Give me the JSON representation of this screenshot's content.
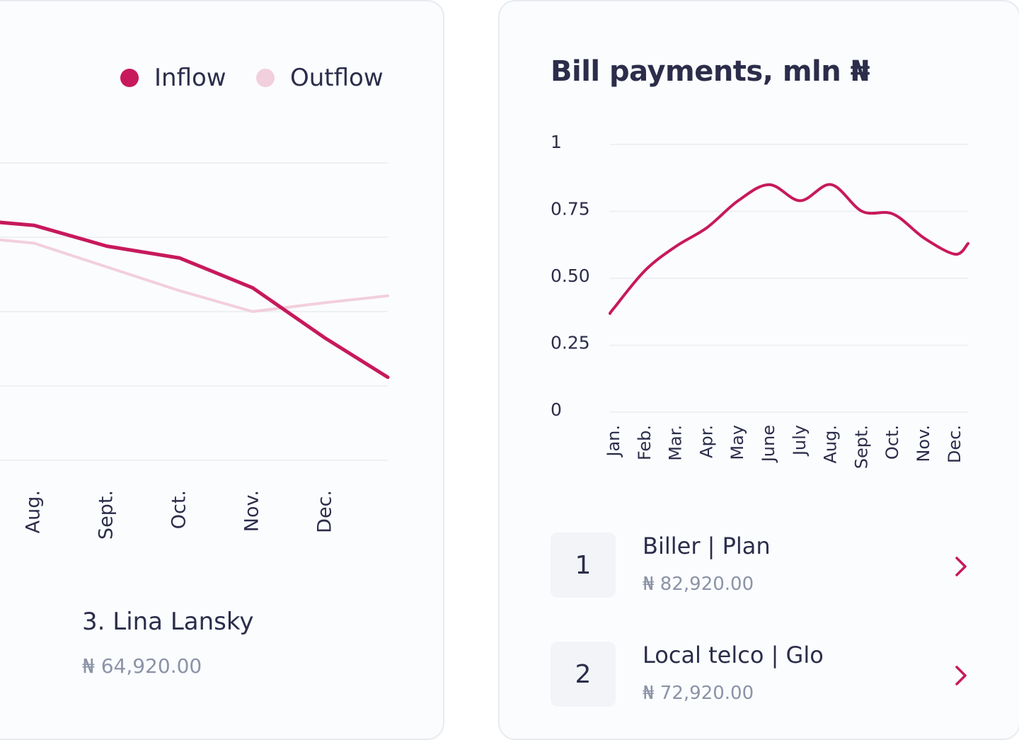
{
  "colors": {
    "inflow": "#c7195c",
    "outflow": "#f2cfdc",
    "grid": "#eef0f4",
    "text": "#2b2d4a",
    "muted": "#8b93a7"
  },
  "left_card": {
    "legend": [
      {
        "label": "Inflow",
        "color": "#c7195c"
      },
      {
        "label": "Outflow",
        "color": "#f2cfdc"
      }
    ],
    "person": {
      "name": "3. Lina Lansky",
      "amount": "₦ 64,920.00"
    }
  },
  "right_card": {
    "title": "Bill payments, mln ₦",
    "items": [
      {
        "rank": "1",
        "name": "Biller | Plan",
        "amount": "₦ 82,920.00",
        "icon": "chevron-right-icon"
      },
      {
        "rank": "2",
        "name": "Local telco | Glo",
        "amount": "₦ 72,920.00",
        "icon": "chevron-right-icon"
      }
    ]
  },
  "chart_data": [
    {
      "type": "line",
      "title": "",
      "x": [
        "Aug.",
        "Sept.",
        "Oct.",
        "Nov.",
        "Dec."
      ],
      "series": [
        {
          "name": "Inflow",
          "values": [
            0.79,
            0.72,
            0.68,
            0.58,
            0.41
          ]
        },
        {
          "name": "Outflow",
          "values": [
            0.73,
            0.65,
            0.57,
            0.5,
            0.53
          ]
        }
      ],
      "ylim": [
        0,
        1
      ],
      "grid": true,
      "legend_position": "top-right"
    },
    {
      "type": "line",
      "title": "Bill payments, mln ₦",
      "x": [
        "Jan.",
        "Feb.",
        "Mar.",
        "Apr.",
        "May",
        "June",
        "July",
        "Aug.",
        "Sept.",
        "Oct.",
        "Nov.",
        "Dec."
      ],
      "series": [
        {
          "name": "Bill payments",
          "values": [
            0.39,
            0.53,
            0.62,
            0.69,
            0.79,
            0.85,
            0.79,
            0.85,
            0.75,
            0.74,
            0.65,
            0.59
          ]
        }
      ],
      "yticks": [
        "0",
        "0.25",
        "0.50",
        "0.75",
        "1"
      ],
      "ylim": [
        0,
        1
      ],
      "grid": true
    }
  ]
}
